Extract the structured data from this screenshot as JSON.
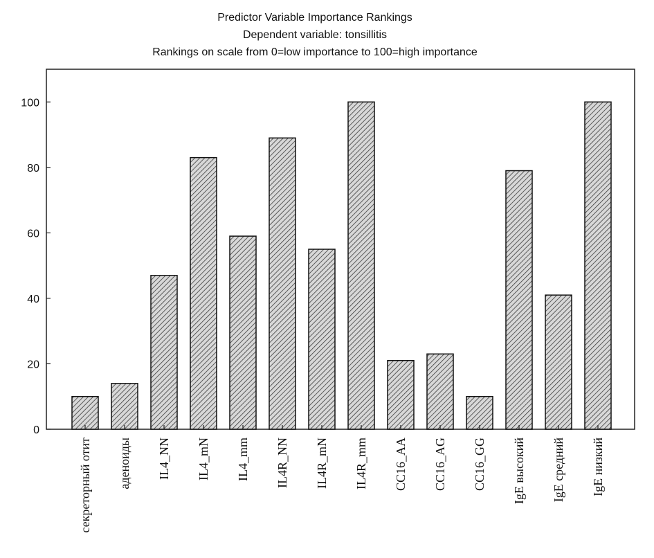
{
  "chart_data": {
    "type": "bar",
    "title": "Predictor Variable Importance Rankings",
    "subtitle": "Dependent variable: tonsillitis",
    "subtitle2": "Rankings on scale from 0=low importance to 100=high importance",
    "xlabel": "",
    "ylabel": "",
    "ylim": [
      0,
      110
    ],
    "yticks": [
      0,
      20,
      40,
      60,
      80,
      100
    ],
    "grid": false,
    "bar_fill": "hatched",
    "categories": [
      "секреторный отит",
      "аденоиды",
      "IL4_NN",
      "IL4_mN",
      "IL4_mm",
      "IL4R_NN",
      "IL4R_mN",
      "IL4R_mm",
      "CC16_AA",
      "CC16_AG",
      "CC16_GG",
      "IgE высокий",
      "IgE средний",
      "IgE низкий"
    ],
    "values": [
      10,
      14,
      47,
      83,
      59,
      89,
      55,
      100,
      21,
      23,
      10,
      79,
      41,
      100
    ]
  }
}
